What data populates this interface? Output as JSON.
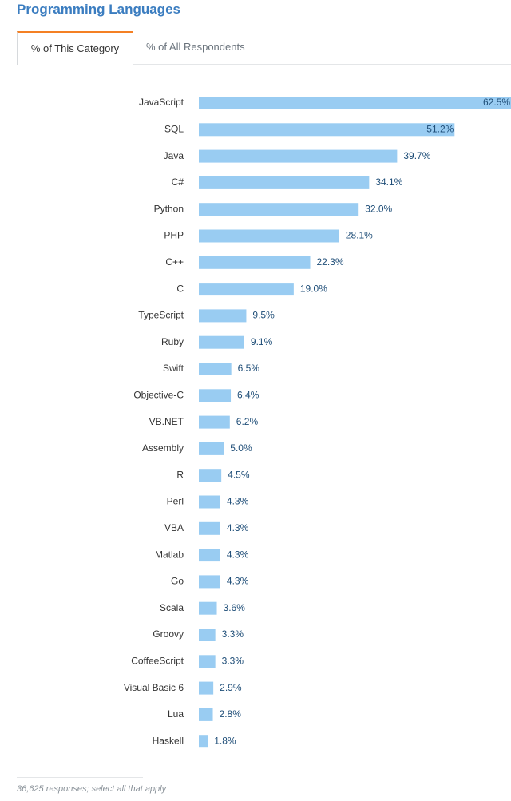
{
  "page": {
    "title": "Programming Languages"
  },
  "tabs": [
    {
      "label": "% of This Category",
      "active": true
    },
    {
      "label": "% of All Respondents",
      "active": false
    }
  ],
  "chart_data": {
    "type": "bar",
    "orientation": "horizontal",
    "categories": [
      "JavaScript",
      "SQL",
      "Java",
      "C#",
      "Python",
      "PHP",
      "C++",
      "C",
      "TypeScript",
      "Ruby",
      "Swift",
      "Objective-C",
      "VB.NET",
      "Assembly",
      "R",
      "Perl",
      "VBA",
      "Matlab",
      "Go",
      "Scala",
      "Groovy",
      "CoffeeScript",
      "Visual Basic 6",
      "Lua",
      "Haskell"
    ],
    "values": [
      62.5,
      51.2,
      39.7,
      34.1,
      32.0,
      28.1,
      22.3,
      19.0,
      9.5,
      9.1,
      6.5,
      6.4,
      6.2,
      5.0,
      4.5,
      4.3,
      4.3,
      4.3,
      4.3,
      3.6,
      3.3,
      3.3,
      2.9,
      2.8,
      1.8
    ],
    "value_labels": [
      "62.5%",
      "51.2%",
      "39.7%",
      "34.1%",
      "32.0%",
      "28.1%",
      "22.3%",
      "19.0%",
      "9.5%",
      "9.1%",
      "6.5%",
      "6.4%",
      "6.2%",
      "5.0%",
      "4.5%",
      "4.3%",
      "4.3%",
      "4.3%",
      "4.3%",
      "3.6%",
      "3.3%",
      "3.3%",
      "2.9%",
      "2.8%",
      "1.8%"
    ],
    "value_unit": "%",
    "xlim": [
      0,
      62.5
    ],
    "grid": false,
    "bar_color": "#99ccf2",
    "value_label_color": "#1f4e78"
  },
  "footnote": "36,625 responses; select all that apply",
  "colors": {
    "title": "#3b7dc0",
    "tab_accent": "#f48024"
  }
}
